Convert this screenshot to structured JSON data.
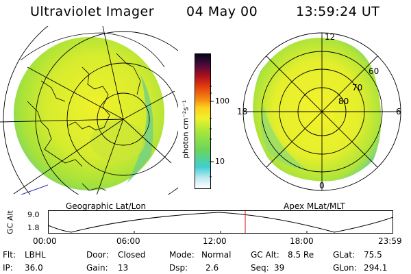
{
  "header": {
    "instrument": "Ultraviolet Imager",
    "date": "04 May 00",
    "time": "13:59:24 UT"
  },
  "left_map": {
    "caption": "Geographic Lat/Lon"
  },
  "right_map": {
    "caption": "Apex MLat/MLT",
    "mlt_labels": [
      "12",
      "18",
      "6",
      "0"
    ],
    "mlat_labels": [
      "60",
      "70",
      "80"
    ]
  },
  "colorbar": {
    "unit_label": "photon cm⁻²s⁻¹",
    "ticks": [
      "100",
      "10"
    ],
    "colors": [
      "#ffffff",
      "#3fcfd2",
      "#69d45e",
      "#a5e63c",
      "#eef22b",
      "#ffd21c",
      "#f58d12",
      "#e33b0e",
      "#a80f20",
      "#4b0a3c",
      "#050519"
    ]
  },
  "altitude_plot": {
    "ylabel": "GC Alt",
    "y_ticks": [
      "9.0",
      "1.8"
    ],
    "x_ticks": [
      "00:00",
      "06:00",
      "12:00",
      "18:00",
      "23:59"
    ],
    "current_time_marker": "13:59"
  },
  "info": {
    "filter_label": "Flt:",
    "filter_value": "LBHL",
    "ip_label": "IP:",
    "ip_value": "36.0",
    "door_label": "Door:",
    "door_value": "Closed",
    "gain_label": "Gain:",
    "gain_value": "13",
    "mode_label": "Mode:",
    "mode_value": "Normal",
    "dsp_label": "Dsp:",
    "dsp_value": "2.6",
    "gcalt_label": "GC Alt:",
    "gcalt_value": "8.5 Re",
    "seq_label": "Seq:",
    "seq_value": "39",
    "glat_label": "GLat:",
    "glat_value": "75.5",
    "glon_label": "GLon:",
    "glon_value": "294.1"
  }
}
